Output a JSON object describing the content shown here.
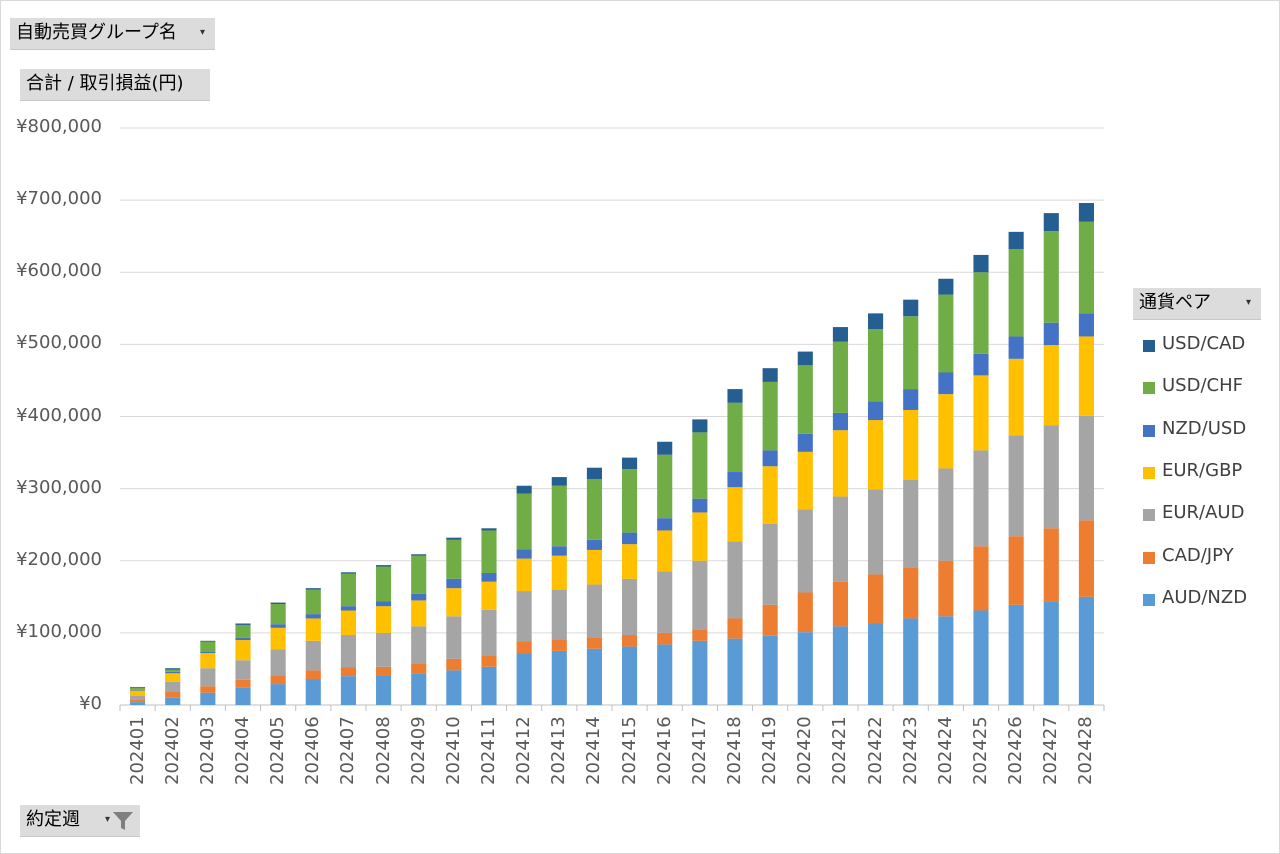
{
  "filters": {
    "group_label": "自動売買グループ名",
    "value_label": "合計 / 取引損益(円)",
    "legend_label": "通貨ペア",
    "week_label": "約定週"
  },
  "chart_data": {
    "type": "bar",
    "stacked": true,
    "title": "",
    "xlabel": "",
    "ylabel": "合計 / 取引損益(円)",
    "ylim": [
      0,
      800000
    ],
    "yticks": [
      0,
      100000,
      200000,
      300000,
      400000,
      500000,
      600000,
      700000,
      800000
    ],
    "ytick_labels": [
      "¥0",
      "¥100,000",
      "¥200,000",
      "¥300,000",
      "¥400,000",
      "¥500,000",
      "¥600,000",
      "¥700,000",
      "¥800,000"
    ],
    "grid": true,
    "legend_position": "right",
    "categories": [
      "202401",
      "202402",
      "202403",
      "202404",
      "202405",
      "202406",
      "202407",
      "202408",
      "202409",
      "202410",
      "202411",
      "202412",
      "202413",
      "202414",
      "202415",
      "202416",
      "202417",
      "202418",
      "202419",
      "202420",
      "202421",
      "202422",
      "202423",
      "202424",
      "202425",
      "202426",
      "202427",
      "202428"
    ],
    "series": [
      {
        "name": "AUD/NZD",
        "color": "#5b9bd5",
        "values": [
          4000,
          10000,
          17000,
          24000,
          29000,
          36000,
          40000,
          41000,
          44000,
          48000,
          53000,
          72000,
          75000,
          78000,
          81000,
          84000,
          89000,
          92000,
          96000,
          101000,
          109000,
          113000,
          120000,
          123000,
          131000,
          139000,
          144000,
          150000
        ]
      },
      {
        "name": "CAD/JPY",
        "color": "#ed7d31",
        "values": [
          3000,
          9000,
          9000,
          11000,
          12000,
          12000,
          12000,
          12000,
          14000,
          16000,
          16000,
          16000,
          16000,
          16000,
          16000,
          16000,
          16000,
          28000,
          43000,
          55000,
          62000,
          68000,
          71000,
          77000,
          89000,
          95000,
          101000,
          106000
        ]
      },
      {
        "name": "EUR/AUD",
        "color": "#a5a5a5",
        "values": [
          6000,
          13000,
          25000,
          27000,
          36000,
          41000,
          45000,
          47000,
          51000,
          59000,
          63000,
          70000,
          69000,
          73000,
          78000,
          85000,
          95000,
          107000,
          112000,
          115000,
          118000,
          118000,
          121000,
          128000,
          133000,
          140000,
          143000,
          145000
        ]
      },
      {
        "name": "EUR/GBP",
        "color": "#ffc000",
        "values": [
          7000,
          12000,
          21000,
          28000,
          30000,
          31000,
          34000,
          37000,
          36000,
          39000,
          39000,
          45000,
          47000,
          48000,
          48000,
          57000,
          67000,
          75000,
          80000,
          80000,
          92000,
          96000,
          97000,
          103000,
          104000,
          106000,
          111000,
          110000
        ]
      },
      {
        "name": "NZD/USD",
        "color": "#4472c4",
        "values": [
          1000,
          2000,
          2000,
          3000,
          5000,
          6000,
          6000,
          7000,
          9000,
          13000,
          12000,
          13000,
          13000,
          14000,
          16000,
          17000,
          19000,
          21000,
          22000,
          25000,
          24000,
          26000,
          29000,
          30000,
          30000,
          31000,
          31000,
          32000
        ]
      },
      {
        "name": "USD/CHF",
        "color": "#70ad47",
        "values": [
          3000,
          3000,
          14000,
          18000,
          28000,
          34000,
          45000,
          48000,
          53000,
          54000,
          59000,
          77000,
          84000,
          84000,
          88000,
          88000,
          92000,
          96000,
          95000,
          95000,
          99000,
          100000,
          101000,
          108000,
          113000,
          121000,
          127000,
          127000
        ]
      },
      {
        "name": "USD/CAD",
        "color": "#255e91",
        "values": [
          1000,
          2000,
          1000,
          2000,
          2000,
          2000,
          2000,
          2000,
          2000,
          3000,
          3000,
          11000,
          12000,
          16000,
          16000,
          18000,
          18000,
          19000,
          19000,
          19000,
          20000,
          22000,
          23000,
          22000,
          24000,
          24000,
          25000,
          26000
        ]
      }
    ],
    "legend_order": [
      "USD/CAD",
      "USD/CHF",
      "NZD/USD",
      "EUR/GBP",
      "EUR/AUD",
      "CAD/JPY",
      "AUD/NZD"
    ]
  }
}
